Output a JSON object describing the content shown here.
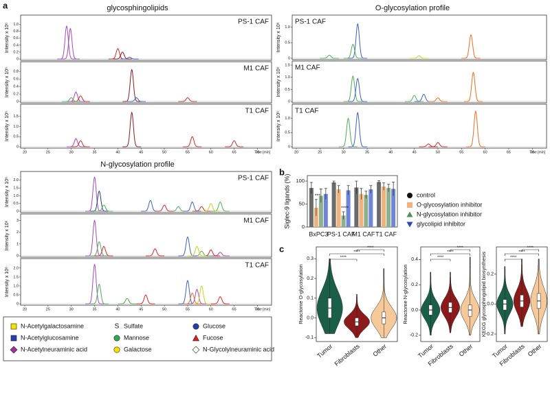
{
  "panel_labels": [
    "a",
    "b",
    "c"
  ],
  "chart_data": [
    {
      "type": "chromatogram",
      "title": "glycosphingolipids",
      "x_label": "Time [min]",
      "y_label": "Intensity x 10⁶",
      "label_corner": "right",
      "xlim": [
        20,
        72
      ],
      "xticks": [
        20,
        25,
        30,
        35,
        40,
        45,
        50,
        55,
        60,
        65,
        70
      ],
      "subplots": [
        {
          "label": "PS-1 CAF",
          "ylim": [
            0,
            1.15
          ],
          "yticks": [
            0,
            0.2,
            0.4,
            0.6,
            0.8,
            {
              "value": 1,
              "label": "1.0"
            }
          ],
          "traces": [
            {
              "color": "#a349c4",
              "peaks": [
                [
                  29,
                  0.95
                ],
                [
                  29.8,
                  0.88
                ]
              ]
            },
            {
              "color": "#d62728",
              "peaks": [
                [
                  40,
                  0.3
                ]
              ]
            },
            {
              "color": "#8b1a1a",
              "peaks": [
                [
                  41,
                  0.2
                ]
              ]
            },
            {
              "color": "#3a5fcd",
              "peaks": [
                [
                  42.5,
                  0.05
                ]
              ]
            }
          ]
        },
        {
          "label": "M1 CAF",
          "ylim": [
            0,
            0.95
          ],
          "yticks": [
            0,
            0.2,
            0.4,
            0.6,
            0.8
          ],
          "traces": [
            {
              "color": "#a349c4",
              "peaks": [
                [
                  31,
                  0.25
                ]
              ]
            },
            {
              "color": "#d62728",
              "peaks": [
                [
                  32,
                  0.15
                ],
                [
                  55,
                  0.1
                ]
              ]
            },
            {
              "color": "#4caf50",
              "peaks": [
                [
                  30,
                  0.1
                ]
              ]
            },
            {
              "color": "#8b1a1a",
              "peaks": [
                [
                  43,
                  0.85
                ]
              ]
            },
            {
              "color": "#3a5fcd",
              "peaks": [
                [
                  44,
                  0.1
                ]
              ]
            }
          ]
        },
        {
          "label": "T1 CAF",
          "ylim": [
            0,
            1.9
          ],
          "yticks": [
            0,
            0.5,
            {
              "value": 1,
              "label": "1.0"
            },
            1.5
          ],
          "traces": [
            {
              "color": "#a349c4",
              "peaks": [
                [
                  31,
                  0.4
                ]
              ]
            },
            {
              "color": "#d62728",
              "peaks": [
                [
                  32,
                  0.3
                ],
                [
                  56,
                  0.5
                ],
                [
                  65,
                  0.3
                ]
              ]
            },
            {
              "color": "#8b1a1a",
              "peaks": [
                [
                  43,
                  1.7
                ]
              ]
            }
          ]
        }
      ]
    },
    {
      "type": "chromatogram",
      "title": "O-glycosylation profile",
      "x_label": "Time [min]",
      "y_label": "Intensity x 10⁶",
      "label_corner": "left",
      "xlim": [
        20,
        72
      ],
      "xticks": [
        20,
        25,
        30,
        35,
        40,
        45,
        50,
        55,
        60,
        65,
        70
      ],
      "subplots": [
        {
          "label": "PS-1 CAF",
          "ylim": [
            0,
            1.25
          ],
          "yticks": [
            0,
            0.5,
            {
              "value": 1,
              "label": "1.0"
            }
          ],
          "traces": [
            {
              "color": "#4caf50",
              "peaks": [
                [
                  32,
                  0.45
                ],
                [
                  27,
                  0.1
                ]
              ]
            },
            {
              "color": "#3a5fcd",
              "peaks": [
                [
                  33,
                  1.1
                ]
              ]
            },
            {
              "color": "#f26b1d",
              "peaks": [
                [
                  57,
                  0.75
                ]
              ]
            },
            {
              "color": "#c9d21f",
              "peaks": [
                [
                  46,
                  0.08
                ]
              ]
            }
          ]
        },
        {
          "label": "M1 CAF",
          "ylim": [
            0,
            1.5
          ],
          "yticks": [
            0,
            0.5,
            {
              "value": 1,
              "label": "1.0"
            },
            1.5
          ],
          "traces": [
            {
              "color": "#4caf50",
              "peaks": [
                [
                  32,
                  1.05
                ],
                [
                  45,
                  0.25
                ]
              ]
            },
            {
              "color": "#3a5fcd",
              "peaks": [
                [
                  33,
                  0.95
                ],
                [
                  47,
                  0.3
                ]
              ]
            },
            {
              "color": "#f26b1d",
              "peaks": [
                [
                  57.5,
                  1.2
                ],
                [
                  50,
                  0.15
                ]
              ]
            }
          ]
        },
        {
          "label": "T1 CAF",
          "ylim": [
            0,
            1.35
          ],
          "yticks": [
            0,
            0.5,
            {
              "value": 1,
              "label": "1.0"
            }
          ],
          "traces": [
            {
              "color": "#4caf50",
              "peaks": [
                [
                  31,
                  1.0
                ]
              ]
            },
            {
              "color": "#3a5fcd",
              "peaks": [
                [
                  33,
                  1.2
                ]
              ]
            },
            {
              "color": "#d62728",
              "peaks": [
                [
                  48,
                  0.1
                ],
                [
                  50,
                  0.15
                ]
              ]
            },
            {
              "color": "#f26b1d",
              "peaks": [
                [
                  58,
                  1.25
                ]
              ]
            }
          ]
        }
      ]
    },
    {
      "type": "chromatogram",
      "title": "N-glycosylation profile",
      "x_label": "Time [min]",
      "y_label": "Intensity x 10⁶",
      "label_corner": "right",
      "xlim": [
        20,
        72
      ],
      "xticks": [
        20,
        25,
        30,
        35,
        40,
        45,
        50,
        55,
        60,
        65,
        70
      ],
      "subplots": [
        {
          "label": "PS-1 CAF",
          "ylim": [
            0,
            2.3
          ],
          "yticks": [
            0,
            0.5,
            {
              "value": 1,
              "label": "1.0"
            },
            1.5,
            {
              "value": 2,
              "label": "2.0"
            }
          ],
          "traces": [
            {
              "color": "#a349c4",
              "peaks": [
                [
                  35,
                  2.2
                ]
              ]
            },
            {
              "color": "#1f3c88",
              "peaks": [
                [
                  36,
                  1.3
                ]
              ]
            },
            {
              "color": "#4caf50",
              "peaks": [
                [
                  37,
                  0.4
                ],
                [
                  53,
                  0.3
                ],
                [
                  62,
                  0.6
                ]
              ]
            },
            {
              "color": "#3a5fcd",
              "peaks": [
                [
                  47,
                  0.7
                ],
                [
                  56,
                  0.6
                ]
              ]
            },
            {
              "color": "#d62728",
              "peaks": [
                [
                  50,
                  0.4
                ],
                [
                  58,
                  0.3
                ]
              ]
            },
            {
              "color": "#c9d21f",
              "peaks": [
                [
                  60,
                  0.5
                ]
              ]
            }
          ]
        },
        {
          "label": "M1 CAF",
          "ylim": [
            0,
            3.2
          ],
          "yticks": [
            0,
            1,
            2,
            3
          ],
          "traces": [
            {
              "color": "#a349c4",
              "peaks": [
                [
                  35,
                  3.0
                ],
                [
                  62,
                  0.3
                ]
              ]
            },
            {
              "color": "#4caf50",
              "peaks": [
                [
                  36,
                  1.2
                ],
                [
                  58,
                  0.4
                ]
              ]
            },
            {
              "color": "#d62728",
              "peaks": [
                [
                  37,
                  0.8
                ],
                [
                  48,
                  0.6
                ],
                [
                  60,
                  0.5
                ]
              ]
            },
            {
              "color": "#3a5fcd",
              "peaks": [
                [
                  55,
                  1.6
                ]
              ]
            },
            {
              "color": "#c9d21f",
              "peaks": [
                [
                  57,
                  0.8
                ]
              ]
            }
          ]
        },
        {
          "label": "T1 CAF",
          "ylim": [
            0,
            2.3
          ],
          "yticks": [
            0,
            0.5,
            {
              "value": 1,
              "label": "1.0"
            },
            1.5,
            {
              "value": 2,
              "label": "2.0"
            }
          ],
          "traces": [
            {
              "color": "#a349c4",
              "peaks": [
                [
                  35,
                  2.2
                ],
                [
                  57,
                  0.8
                ]
              ]
            },
            {
              "color": "#4caf50",
              "peaks": [
                [
                  36,
                  1.1
                ],
                [
                  42,
                  0.3
                ]
              ]
            },
            {
              "color": "#d62728",
              "peaks": [
                [
                  46,
                  0.5
                ],
                [
                  62,
                  0.4
                ]
              ]
            },
            {
              "color": "#3a5fcd",
              "peaks": [
                [
                  55,
                  1.3
                ]
              ]
            },
            {
              "color": "#c9d21f",
              "peaks": [
                [
                  58,
                  1.0
                ]
              ]
            },
            {
              "color": "#f26b1d",
              "peaks": [
                [
                  56,
                  0.6
                ]
              ]
            }
          ]
        }
      ]
    },
    {
      "type": "bar",
      "y_label": "Siglec-9 ligands (%)",
      "categories": [
        "BxPC3",
        "PS-1 CAF",
        "M1 CAF",
        "T1 CAF"
      ],
      "ylim": [
        0,
        112
      ],
      "yticks": [
        0,
        50,
        100
      ],
      "annotations": [
        "***",
        "****"
      ],
      "series": [
        {
          "name": "control",
          "color": "#6b6b6b",
          "marker": "circle",
          "values": [
            85,
            97,
            86,
            98
          ],
          "errors": [
            12,
            3,
            14,
            3
          ]
        },
        {
          "name": "O-glycosylation inhibitor",
          "color": "#f0b27a",
          "marker": "square",
          "values": [
            42,
            82,
            72,
            88
          ],
          "errors": [
            18,
            8,
            12,
            8
          ]
        },
        {
          "name": "N-glycosylation inhibitor",
          "color": "#8fb08f",
          "marker": "triangle",
          "values": [
            68,
            25,
            70,
            85
          ],
          "errors": [
            15,
            8,
            8,
            8
          ]
        },
        {
          "name": "glycolipid inhibitor",
          "color": "#6f86d6",
          "marker": "triangle-down",
          "values": [
            72,
            80,
            82,
            83
          ],
          "errors": [
            12,
            10,
            8,
            15
          ]
        }
      ]
    },
    {
      "type": "violin",
      "y_label": "Reactome O-glycosylation",
      "categories": [
        "Tumor",
        "Fibroblasts",
        "Other"
      ],
      "colors": [
        "#1b5e4a",
        "#8b1a1a",
        "#f5c99a"
      ],
      "ylim": [
        -0.12,
        0.36
      ],
      "yticks": [
        -0.1,
        {
          "value": 0,
          "label": "0.0"
        },
        0.1,
        0.2,
        0.3
      ],
      "significance": [
        "****",
        "****",
        "****"
      ],
      "stats": [
        {
          "median": 0.05,
          "q1": 0.0,
          "q3": 0.1,
          "min": -0.08,
          "max": 0.3
        },
        {
          "median": -0.02,
          "q1": -0.04,
          "q3": 0.0,
          "min": -0.1,
          "max": 0.12
        },
        {
          "median": 0.0,
          "q1": -0.03,
          "q3": 0.03,
          "min": -0.1,
          "max": 0.25
        }
      ]
    },
    {
      "type": "violin",
      "y_label": "Reactome N-glycosylation",
      "categories": [
        "Tumor",
        "Fibroblasts",
        "Other"
      ],
      "colors": [
        "#1b5e4a",
        "#8b1a1a",
        "#f5c99a"
      ],
      "ylim": [
        -0.25,
        0.5
      ],
      "yticks": [
        -0.2,
        {
          "value": 0,
          "label": "0.0"
        },
        0.2,
        0.4
      ],
      "significance": [
        "****",
        "****",
        "****"
      ],
      "stats": [
        {
          "median": 0.0,
          "q1": -0.04,
          "q3": 0.04,
          "min": -0.2,
          "max": 0.3
        },
        {
          "median": 0.02,
          "q1": -0.02,
          "q3": 0.06,
          "min": -0.18,
          "max": 0.3
        },
        {
          "median": 0.0,
          "q1": -0.05,
          "q3": 0.04,
          "min": -0.2,
          "max": 0.42
        }
      ]
    },
    {
      "type": "violin",
      "y_label": "KEGG glycosphingolipid biosynthesis",
      "categories": [
        "Tumor",
        "Fibroblasts",
        "Other"
      ],
      "colors": [
        "#1b5e4a",
        "#8b1a1a",
        "#f5c99a"
      ],
      "ylim": [
        -0.25,
        0.38
      ],
      "yticks": [
        -0.2,
        {
          "value": 0,
          "label": "0.0"
        },
        0.2
      ],
      "significance": [
        "****",
        "****",
        "****"
      ],
      "stats": [
        {
          "median": 0.0,
          "q1": -0.04,
          "q3": 0.03,
          "min": -0.2,
          "max": 0.25
        },
        {
          "median": 0.02,
          "q1": -0.02,
          "q3": 0.06,
          "min": -0.15,
          "max": 0.3
        },
        {
          "median": 0.02,
          "q1": -0.03,
          "q3": 0.07,
          "min": -0.2,
          "max": 0.3
        }
      ]
    }
  ],
  "glycan_legend": [
    {
      "name": "N-Acetylgalactosamine",
      "shape": "square",
      "color": "#f5e000"
    },
    {
      "name": "N-Acetylglucosamine",
      "shape": "square",
      "color": "#2140a8"
    },
    {
      "name": "N-Acetylneuraminic acid",
      "shape": "diamond",
      "color": "#a0309a"
    },
    {
      "name": "Sulfate",
      "shape": "letter",
      "symbol": "S"
    },
    {
      "name": "Mannose",
      "shape": "circle",
      "color": "#2fa84f"
    },
    {
      "name": "Galactose",
      "shape": "circle",
      "color": "#f5e000"
    },
    {
      "name": "Glucose",
      "shape": "circle",
      "color": "#2140a8"
    },
    {
      "name": "Fucose",
      "shape": "triangle",
      "color": "#e02020"
    },
    {
      "name": "N-Glycolylneuraminic acid",
      "shape": "diamond",
      "color": "#ffffff"
    }
  ]
}
